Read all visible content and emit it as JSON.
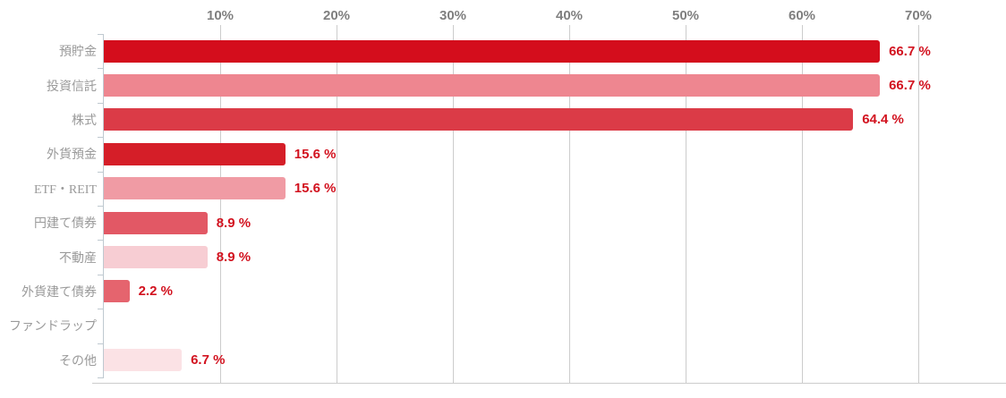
{
  "chart_data": {
    "type": "bar",
    "orientation": "horizontal",
    "title": "",
    "xlabel": "",
    "ylabel": "",
    "categories": [
      "預貯金",
      "投資信託",
      "株式",
      "外貨預金",
      "ETF・REIT",
      "円建て債券",
      "不動産",
      "外貨建て債券",
      "ファンドラップ",
      "その他"
    ],
    "values": [
      66.7,
      66.7,
      64.4,
      15.6,
      15.6,
      8.9,
      8.9,
      2.2,
      null,
      6.7
    ],
    "value_labels": [
      "66.7 %",
      "66.7 %",
      "64.4 %",
      "15.6 %",
      "15.6 %",
      "8.9 %",
      "8.9 %",
      "2.2 %",
      "",
      "6.7 %"
    ],
    "bar_colors": [
      "#d40d1c",
      "#ee8690",
      "#db3b47",
      "#d51e28",
      "#f09ba4",
      "#e25865",
      "#f7cdd3",
      "#e5646e",
      "",
      "#fbe2e5"
    ],
    "x_axis": {
      "position": "top",
      "tick_labels": [
        "10%",
        "20%",
        "30%",
        "40%",
        "50%",
        "60%",
        "70%"
      ],
      "tick_values": [
        10,
        20,
        30,
        40,
        50,
        60,
        70
      ],
      "min": 0,
      "max": 70
    },
    "grid": true,
    "legend": "none",
    "colors": {
      "value_label": "#d2121f",
      "axis_tick_label": "#7f7f7f",
      "category_label": "#9a9a9a",
      "gridline": "#cccccc",
      "axis_line": "#bfc9d0"
    }
  }
}
